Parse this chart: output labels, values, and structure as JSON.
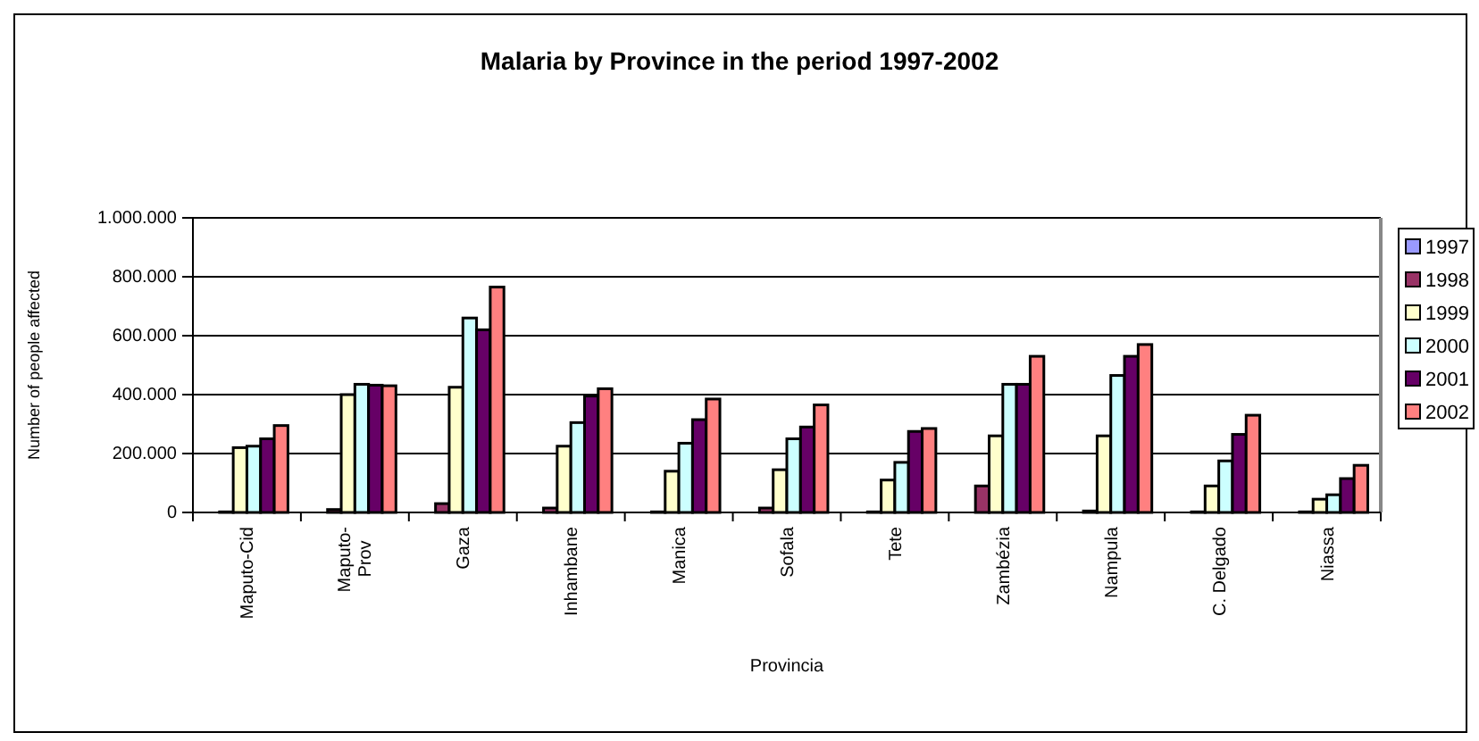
{
  "chart_data": {
    "type": "bar",
    "title": "Malaria by Province in the period 1997-2002",
    "xlabel": "Provincia",
    "ylabel": "Number of people affected",
    "categories": [
      "Maputo-Cid",
      "Maputo-Prov",
      "Gaza",
      "Inhambane",
      "Manica",
      "Sofala",
      "Tete",
      "Zambézia",
      "Nampula",
      "C. Delgado",
      "Niassa"
    ],
    "series": [
      {
        "name": "1997",
        "color": "#9999ff",
        "values": [
          0,
          0,
          0,
          0,
          0,
          0,
          0,
          0,
          0,
          0,
          0
        ]
      },
      {
        "name": "1998",
        "color": "#993366",
        "values": [
          2000,
          10000,
          30000,
          15000,
          2000,
          15000,
          2000,
          90000,
          5000,
          2000,
          2000
        ]
      },
      {
        "name": "1999",
        "color": "#ffffcc",
        "values": [
          220000,
          400000,
          425000,
          225000,
          140000,
          145000,
          110000,
          260000,
          260000,
          90000,
          45000
        ]
      },
      {
        "name": "2000",
        "color": "#ccffff",
        "values": [
          225000,
          435000,
          660000,
          305000,
          235000,
          250000,
          170000,
          435000,
          465000,
          175000,
          60000
        ]
      },
      {
        "name": "2001",
        "color": "#660066",
        "values": [
          250000,
          432000,
          620000,
          395000,
          315000,
          290000,
          275000,
          435000,
          530000,
          265000,
          115000
        ]
      },
      {
        "name": "2002",
        "color": "#ff8080",
        "values": [
          295000,
          430000,
          765000,
          420000,
          385000,
          365000,
          285000,
          530000,
          570000,
          330000,
          160000
        ]
      }
    ],
    "ylim": [
      0,
      1000000
    ],
    "yticks": [
      0,
      {
        "value": 200000,
        "label": "200.000"
      },
      {
        "value": 400000,
        "label": "400.000"
      },
      {
        "value": 600000,
        "label": "600.000"
      },
      {
        "value": 800000,
        "label": "800.000"
      },
      {
        "value": 1000000,
        "label": "1.000.000"
      }
    ],
    "grid": "y",
    "legend": "right"
  }
}
